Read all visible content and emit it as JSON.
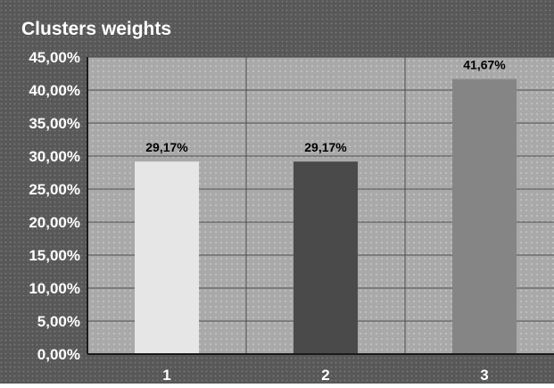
{
  "chart_data": {
    "type": "bar",
    "title": "Clusters weights",
    "categories": [
      "1",
      "2",
      "3"
    ],
    "values": [
      29.17,
      29.17,
      41.67
    ],
    "data_labels": [
      "29,17%",
      "29,17%",
      "41,67%"
    ],
    "ylim": [
      0,
      45
    ],
    "yticks": [
      0,
      5,
      10,
      15,
      20,
      25,
      30,
      35,
      40,
      45
    ],
    "ytick_labels": [
      "0,00%",
      "5,00%",
      "10,00%",
      "15,00%",
      "20,00%",
      "25,00%",
      "30,00%",
      "35,00%",
      "40,00%",
      "45,00%"
    ],
    "bar_colors": [
      "#e6e6e6",
      "#4a4a4a",
      "#858585"
    ],
    "grid": true,
    "legend": false
  }
}
